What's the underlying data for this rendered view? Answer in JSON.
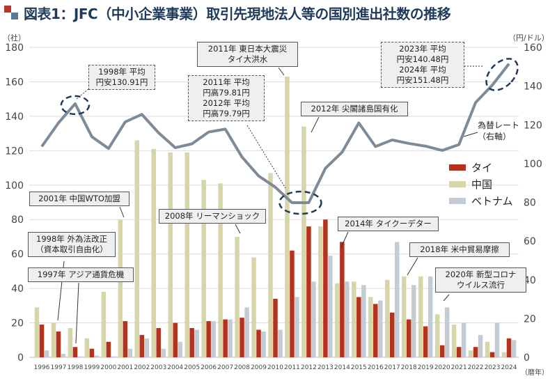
{
  "title": "図表1：JFC（中小企業事業）取引先現地法人等の国別進出社数の推移",
  "chart_data": {
    "type": "bar",
    "title": "図表1：JFC（中小企業事業）取引先現地法人等の国別進出社数の推移",
    "ylabel": "（社）",
    "y2label": "（円/ドル）",
    "xlabel": "（暦年）",
    "ylim": [
      0,
      180
    ],
    "y2lim": [
      0,
      160
    ],
    "yticks": [
      "0",
      "20",
      "40",
      "60",
      "80",
      "100",
      "120",
      "140",
      "160",
      "180"
    ],
    "y2ticks": [
      "0",
      "20",
      "40",
      "60",
      "80",
      "100",
      "120",
      "140",
      "160"
    ],
    "categories": [
      "1996",
      "1997",
      "1998",
      "1999",
      "2000",
      "2001",
      "2002",
      "2003",
      "2004",
      "2005",
      "2006",
      "2007",
      "2008",
      "2009",
      "2010",
      "2011",
      "2012",
      "2013",
      "2014",
      "2015",
      "2016",
      "2017",
      "2018",
      "2019",
      "2020",
      "2021",
      "2022",
      "2023",
      "2024"
    ],
    "series": [
      {
        "name": "中国",
        "color": "#d6d6a8",
        "values": [
          29,
          20,
          17,
          11,
          38,
          80,
          126,
          121,
          119,
          119,
          103,
          101,
          70,
          58,
          107,
          163,
          134,
          76,
          43,
          44,
          35,
          45,
          47,
          47,
          25,
          19,
          4,
          9,
          3
        ]
      },
      {
        "name": "タイ",
        "color": "#b5321f",
        "values": [
          19,
          15,
          6,
          5,
          9,
          21,
          13,
          17,
          20,
          17,
          21,
          22,
          23,
          16,
          34,
          62,
          76,
          80,
          67,
          35,
          31,
          26,
          22,
          18,
          7,
          6,
          6,
          3,
          11
        ]
      },
      {
        "name": "ベトナム",
        "color": "#c3ccd4",
        "values": [
          4,
          2,
          0.5,
          1,
          0.5,
          5,
          11,
          5,
          9,
          16,
          21,
          22,
          29,
          15,
          16,
          35,
          44,
          59,
          44,
          42,
          33,
          67,
          42,
          47,
          29,
          20,
          13,
          20,
          10
        ]
      }
    ],
    "line": {
      "name": "為替レート（右軸）",
      "color": "#7d8b98",
      "axis": "right",
      "values": [
        108.8,
        121.0,
        130.9,
        113.9,
        107.8,
        121.5,
        125.4,
        115.9,
        108.2,
        110.2,
        116.3,
        117.8,
        103.4,
        93.6,
        87.8,
        79.8,
        79.8,
        97.6,
        105.9,
        121.0,
        108.8,
        112.2,
        110.4,
        109.0,
        106.8,
        109.8,
        131.5,
        140.5,
        151.5
      ]
    },
    "legend": [
      "タイ",
      "中国",
      "ベトナム"
    ],
    "legend_position": "right",
    "annotations": {
      "a2011quake": [
        "2011年 東日本大震災",
        "タイ大洪水"
      ],
      "a1998fx": [
        "1998年 平均",
        "円安130.91円"
      ],
      "a2011fx": [
        "2011年 平均",
        "円高79.81円",
        "2012年 平均",
        "円高79.79円"
      ],
      "a2012": "2012年 尖閣諸島国有化",
      "a2023fx": [
        "2023年 平均",
        "円安140.48円",
        "2024年 平均",
        "円安151.48円"
      ],
      "fxlabel": [
        "為替レート",
        "（右軸）"
      ],
      "a2001": "2001年 中国WTO加盟",
      "a2008": "2008年 リーマンショック",
      "a2014": "2014年 タイクーデター",
      "a1998law": [
        "1998年 外為法改正",
        "（資本取引自由化）"
      ],
      "a1997": "1997年 アジア通貨危機",
      "a2018": "2018年 米中貿易摩擦",
      "a2020": [
        "2020年 新型コロナ",
        "ウイルス流行"
      ]
    }
  }
}
